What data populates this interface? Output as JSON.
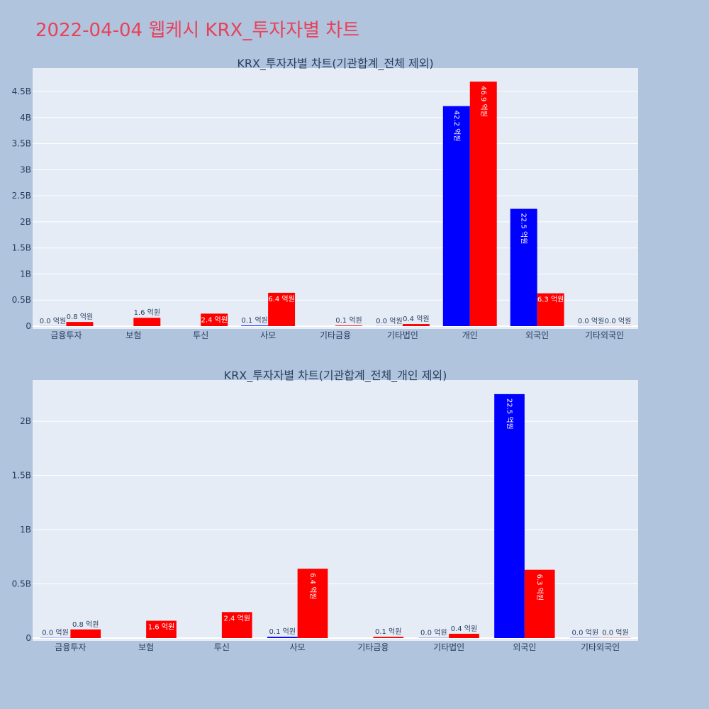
{
  "title": "2022-04-04 웹케시 KRX_투자자별 차트",
  "colors": {
    "buy": "#0000ff",
    "sell": "#ff0000",
    "plot_bg": "#e5ecf6",
    "page_bg": "#b0c4de",
    "title": "#e8415a"
  },
  "chart_data": [
    {
      "type": "bar",
      "title": "KRX_투자자별 차트(기관합계_전체 제외)",
      "categories": [
        "금융투자",
        "보험",
        "투신",
        "사모",
        "기타금융",
        "기타법인",
        "개인",
        "외국인",
        "기타외국인"
      ],
      "series": [
        {
          "color": "blue",
          "values": [
            0.002,
            0,
            0,
            0.012,
            0,
            0.002,
            4.22,
            2.25,
            0.002
          ],
          "labels": [
            "0.0 억원",
            "",
            "",
            "0.1 억원",
            "",
            "0.0 억원",
            "42.2 억원",
            "22.5 억원",
            "0.0 억원"
          ]
        },
        {
          "color": "red",
          "values": [
            0.08,
            0.16,
            0.24,
            0.64,
            0.012,
            0.04,
            4.69,
            0.63,
            0.002
          ],
          "labels": [
            "0.8 억원",
            "1.6 억원",
            "2.4 억원",
            "6.4 억원",
            "0.1 억원",
            "0.4 억원",
            "46.9 억원",
            "6.3 억원",
            "0.0 억원"
          ]
        }
      ],
      "yticks": [
        0,
        0.5,
        1,
        1.5,
        2,
        2.5,
        3,
        3.5,
        4,
        4.5
      ],
      "ytick_labels": [
        "0",
        "0.5B",
        "1B",
        "1.5B",
        "2B",
        "2.5B",
        "3B",
        "3.5B",
        "4B",
        "4.5B"
      ],
      "ylim": [
        0,
        4.95
      ],
      "grid": true
    },
    {
      "type": "bar",
      "title": "KRX_투자자별 차트(기관합계_전체_개인 제외)",
      "categories": [
        "금융투자",
        "보험",
        "투신",
        "사모",
        "기타금융",
        "기타법인",
        "외국인",
        "기타외국인"
      ],
      "series": [
        {
          "color": "blue",
          "values": [
            0.002,
            0,
            0,
            0.012,
            0,
            0.002,
            2.25,
            0.002
          ],
          "labels": [
            "0.0 억원",
            "",
            "",
            "0.1 억원",
            "",
            "0.0 억원",
            "22.5 억원",
            "0.0 억원"
          ]
        },
        {
          "color": "red",
          "values": [
            0.08,
            0.16,
            0.24,
            0.64,
            0.012,
            0.04,
            0.63,
            0.002
          ],
          "labels": [
            "0.8 억원",
            "1.6 억원",
            "2.4 억원",
            "6.4 억원",
            "0.1 억원",
            "0.4 억원",
            "6.3 억원",
            "0.0 억원"
          ]
        }
      ],
      "yticks": [
        0,
        0.5,
        1,
        1.5,
        2
      ],
      "ytick_labels": [
        "0",
        "0.5B",
        "1B",
        "1.5B",
        "2B"
      ],
      "ylim": [
        0,
        2.38
      ],
      "grid": true
    }
  ]
}
